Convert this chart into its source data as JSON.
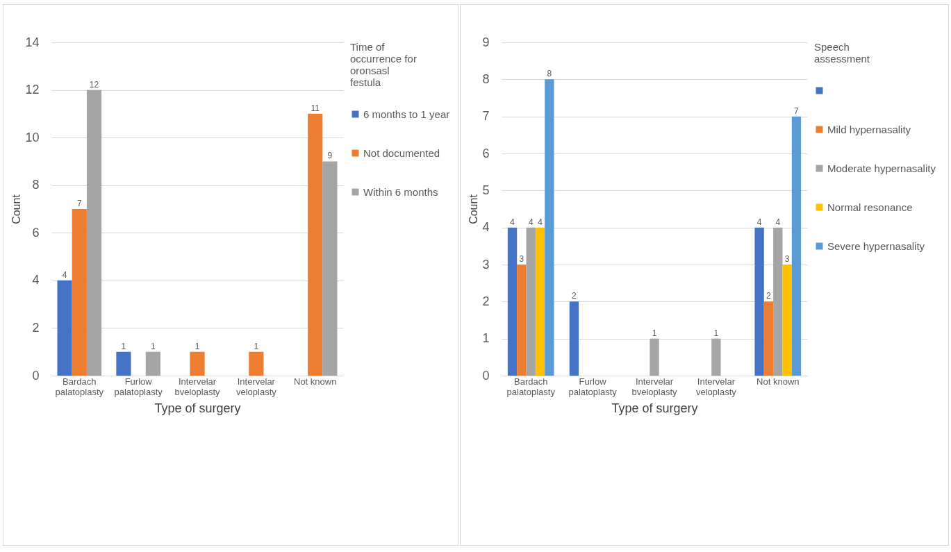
{
  "chart_data": [
    {
      "type": "bar",
      "xlabel": "Type of surgery",
      "ylabel": "Count",
      "legend_title": "Time of occurrence for oronsasl festula",
      "categories": [
        "Bardach palatoplasty",
        "Furlow palatoplasty",
        "Intervelar bveloplasty",
        "Intervelar veloplasty",
        "Not known"
      ],
      "series": [
        {
          "name": "6 months to 1 year",
          "color": "#4472c4",
          "values": [
            4,
            1,
            null,
            null,
            null
          ]
        },
        {
          "name": "Not documented",
          "color": "#ed7d31",
          "values": [
            7,
            null,
            1,
            1,
            11
          ]
        },
        {
          "name": "Within 6 months",
          "color": "#a5a5a5",
          "values": [
            12,
            1,
            null,
            null,
            9
          ]
        }
      ],
      "ylim": [
        0,
        14
      ],
      "yticks": [
        0,
        2,
        4,
        6,
        8,
        10,
        12,
        14
      ],
      "grid": "y",
      "legend": "right",
      "data_labels": true
    },
    {
      "type": "bar",
      "xlabel": "Type of surgery",
      "ylabel": "Count",
      "legend_title": "Speech assessment",
      "categories": [
        "Bardach palatoplasty",
        "Furlow palatoplasty",
        "Intervelar bveloplasty",
        "Intervelar veloplasty",
        "Not known"
      ],
      "series": [
        {
          "color": "#4472c4",
          "values": [
            4,
            2,
            null,
            null,
            4
          ]
        },
        {
          "name": "Mild hypernasality",
          "color": "#ed7d31",
          "values": [
            3,
            null,
            null,
            null,
            2
          ]
        },
        {
          "name": "Moderate hypernasality",
          "color": "#a5a5a5",
          "values": [
            4,
            null,
            1,
            1,
            4
          ]
        },
        {
          "name": "Normal resonance",
          "color": "#ffc000",
          "values": [
            4,
            null,
            null,
            null,
            3
          ]
        },
        {
          "name": "Severe hypernasality",
          "color": "#5b9bd5",
          "values": [
            8,
            null,
            null,
            null,
            7
          ]
        }
      ],
      "ylim": [
        0,
        9
      ],
      "yticks": [
        0,
        1,
        2,
        3,
        4,
        5,
        6,
        7,
        8,
        9
      ],
      "grid": "y",
      "legend": "right",
      "data_labels": true
    }
  ]
}
